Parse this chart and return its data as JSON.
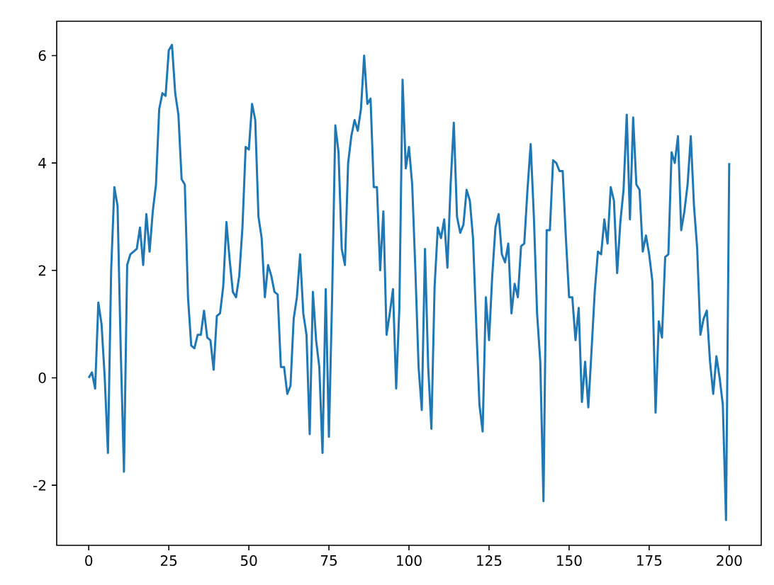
{
  "chart_data": {
    "type": "line",
    "color": "#1f77b4",
    "x": [
      0,
      1,
      2,
      3,
      4,
      5,
      6,
      7,
      8,
      9,
      10,
      11,
      12,
      13,
      14,
      15,
      16,
      17,
      18,
      19,
      20,
      21,
      22,
      23,
      24,
      25,
      26,
      27,
      28,
      29,
      30,
      31,
      32,
      33,
      34,
      35,
      36,
      37,
      38,
      39,
      40,
      41,
      42,
      43,
      44,
      45,
      46,
      47,
      48,
      49,
      50,
      51,
      52,
      53,
      54,
      55,
      56,
      57,
      58,
      59,
      60,
      61,
      62,
      63,
      64,
      65,
      66,
      67,
      68,
      69,
      70,
      71,
      72,
      73,
      74,
      75,
      76,
      77,
      78,
      79,
      80,
      81,
      82,
      83,
      84,
      85,
      86,
      87,
      88,
      89,
      90,
      91,
      92,
      93,
      94,
      95,
      96,
      97,
      98,
      99,
      100,
      101,
      102,
      103,
      104,
      105,
      106,
      107,
      108,
      109,
      110,
      111,
      112,
      113,
      114,
      115,
      116,
      117,
      118,
      119,
      120,
      121,
      122,
      123,
      124,
      125,
      126,
      127,
      128,
      129,
      130,
      131,
      132,
      133,
      134,
      135,
      136,
      137,
      138,
      139,
      140,
      141,
      142,
      143,
      144,
      145,
      146,
      147,
      148,
      149,
      150,
      151,
      152,
      153,
      154,
      155,
      156,
      157,
      158,
      159,
      160,
      161,
      162,
      163,
      164,
      165,
      166,
      167,
      168,
      169,
      170,
      171,
      172,
      173,
      174,
      175,
      176,
      177,
      178,
      179,
      180,
      181,
      182,
      183,
      184,
      185,
      186,
      187,
      188,
      189,
      190,
      191,
      192,
      193,
      194,
      195,
      196,
      197,
      198,
      199,
      200
    ],
    "values": [
      0.0,
      0.1,
      -0.2,
      1.4,
      1.0,
      0.0,
      -1.4,
      2.0,
      3.55,
      3.2,
      0.5,
      -1.75,
      2.1,
      2.3,
      2.35,
      2.4,
      2.8,
      2.1,
      3.05,
      2.35,
      3.1,
      3.6,
      5.0,
      5.3,
      5.25,
      6.1,
      6.2,
      5.3,
      4.9,
      3.7,
      3.6,
      1.5,
      0.6,
      0.55,
      0.8,
      0.8,
      1.25,
      0.75,
      0.7,
      0.15,
      1.15,
      1.2,
      1.7,
      2.9,
      2.2,
      1.6,
      1.5,
      1.9,
      2.8,
      4.3,
      4.25,
      5.1,
      4.8,
      3.0,
      2.6,
      1.5,
      2.1,
      1.9,
      1.6,
      1.55,
      0.2,
      0.2,
      -0.3,
      -0.15,
      1.1,
      1.5,
      2.3,
      1.2,
      0.8,
      -1.05,
      1.6,
      0.7,
      0.2,
      -1.4,
      1.65,
      -1.1,
      1.5,
      4.7,
      4.2,
      2.4,
      2.1,
      4.0,
      4.5,
      4.8,
      4.6,
      5.0,
      6.0,
      5.1,
      5.2,
      3.55,
      3.55,
      2.0,
      3.1,
      0.8,
      1.2,
      1.65,
      -0.2,
      1.3,
      5.55,
      3.9,
      4.3,
      3.6,
      2.0,
      0.2,
      -0.6,
      2.4,
      0.2,
      -0.95,
      1.7,
      2.8,
      2.6,
      2.95,
      2.05,
      3.6,
      4.75,
      3.0,
      2.7,
      2.85,
      3.5,
      3.3,
      2.6,
      1.0,
      -0.5,
      -1.0,
      1.5,
      0.7,
      1.9,
      2.8,
      3.05,
      2.3,
      2.15,
      2.5,
      1.2,
      1.75,
      1.5,
      2.45,
      2.5,
      3.5,
      4.35,
      3.0,
      1.2,
      0.3,
      -2.3,
      2.75,
      2.75,
      4.05,
      4.0,
      3.85,
      3.85,
      2.6,
      1.5,
      1.5,
      0.7,
      1.3,
      -0.45,
      0.3,
      -0.55,
      0.5,
      1.6,
      2.35,
      2.3,
      2.95,
      2.5,
      3.55,
      3.3,
      1.95,
      2.9,
      3.5,
      4.9,
      2.95,
      4.85,
      3.6,
      3.5,
      2.35,
      2.65,
      2.3,
      1.8,
      -0.65,
      1.05,
      0.75,
      2.25,
      2.3,
      4.2,
      4.0,
      4.5,
      2.75,
      3.1,
      3.6,
      4.5,
      3.2,
      2.4,
      0.8,
      1.1,
      1.25,
      0.3,
      -0.3,
      0.4,
      0.0,
      -0.5,
      -2.65,
      4.0
    ],
    "xlim": [
      -10,
      210
    ],
    "ylim": [
      -3.12,
      6.64
    ],
    "xticks": [
      0,
      25,
      50,
      75,
      100,
      125,
      150,
      175,
      200
    ],
    "yticks": [
      -2,
      0,
      2,
      4,
      6
    ]
  }
}
